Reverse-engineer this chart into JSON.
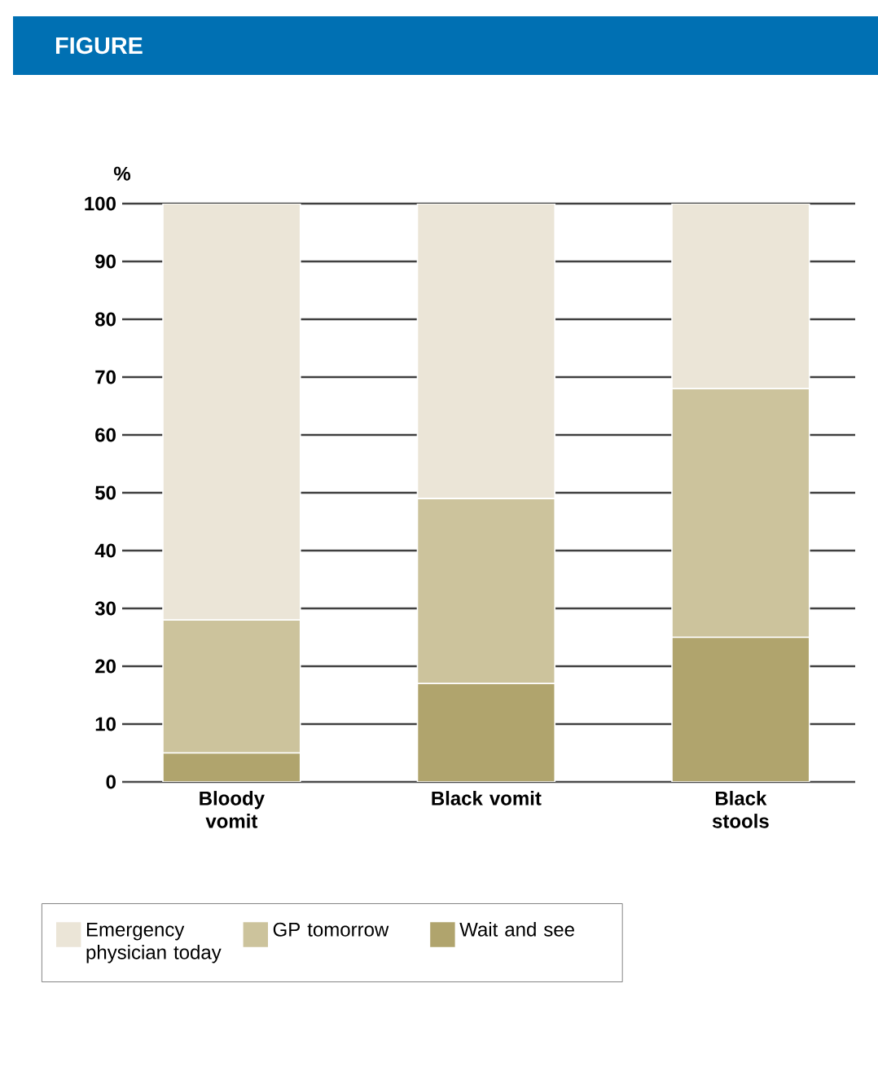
{
  "chart_data": {
    "type": "bar",
    "stacked": true,
    "title": "FIGURE",
    "ylabel": "%",
    "categories": [
      "Bloody vomit",
      "Black vomit",
      "Black stools"
    ],
    "series": [
      {
        "name": "Wait and see",
        "color": "#b0a46d",
        "values": [
          5,
          17,
          25
        ]
      },
      {
        "name": "GP tomorrow",
        "color": "#ccc39c",
        "values": [
          23,
          32,
          43
        ]
      },
      {
        "name": "Emergency physician today",
        "color": "#ebe5d7",
        "values": [
          72,
          51,
          32
        ]
      }
    ],
    "ylim": [
      0,
      100
    ],
    "yticks": [
      0,
      10,
      20,
      30,
      40,
      50,
      60,
      70,
      80,
      90,
      100
    ],
    "grid": "y",
    "legend": "bottom"
  }
}
